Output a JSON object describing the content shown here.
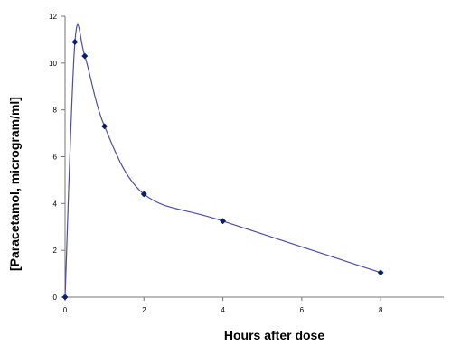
{
  "chart_data": {
    "type": "line",
    "title": "",
    "xlabel": "Hours after dose",
    "ylabel": "[Paracetamol, microgram/ml]",
    "x": [
      0,
      0.25,
      0.5,
      1,
      2,
      4,
      8
    ],
    "series": [
      {
        "values": [
          0,
          10.9,
          10.3,
          7.3,
          4.4,
          3.25,
          1.05
        ]
      }
    ],
    "xlim": [
      0,
      9.6
    ],
    "ylim": [
      0,
      12
    ],
    "xticks": [
      0,
      2,
      4,
      6,
      8
    ],
    "yticks": [
      0,
      2,
      4,
      6,
      8,
      10,
      12
    ],
    "grid": false,
    "smooth": true,
    "line_color": "#4d4da6",
    "marker_color": "#0a1e6e",
    "marker": "diamond"
  }
}
